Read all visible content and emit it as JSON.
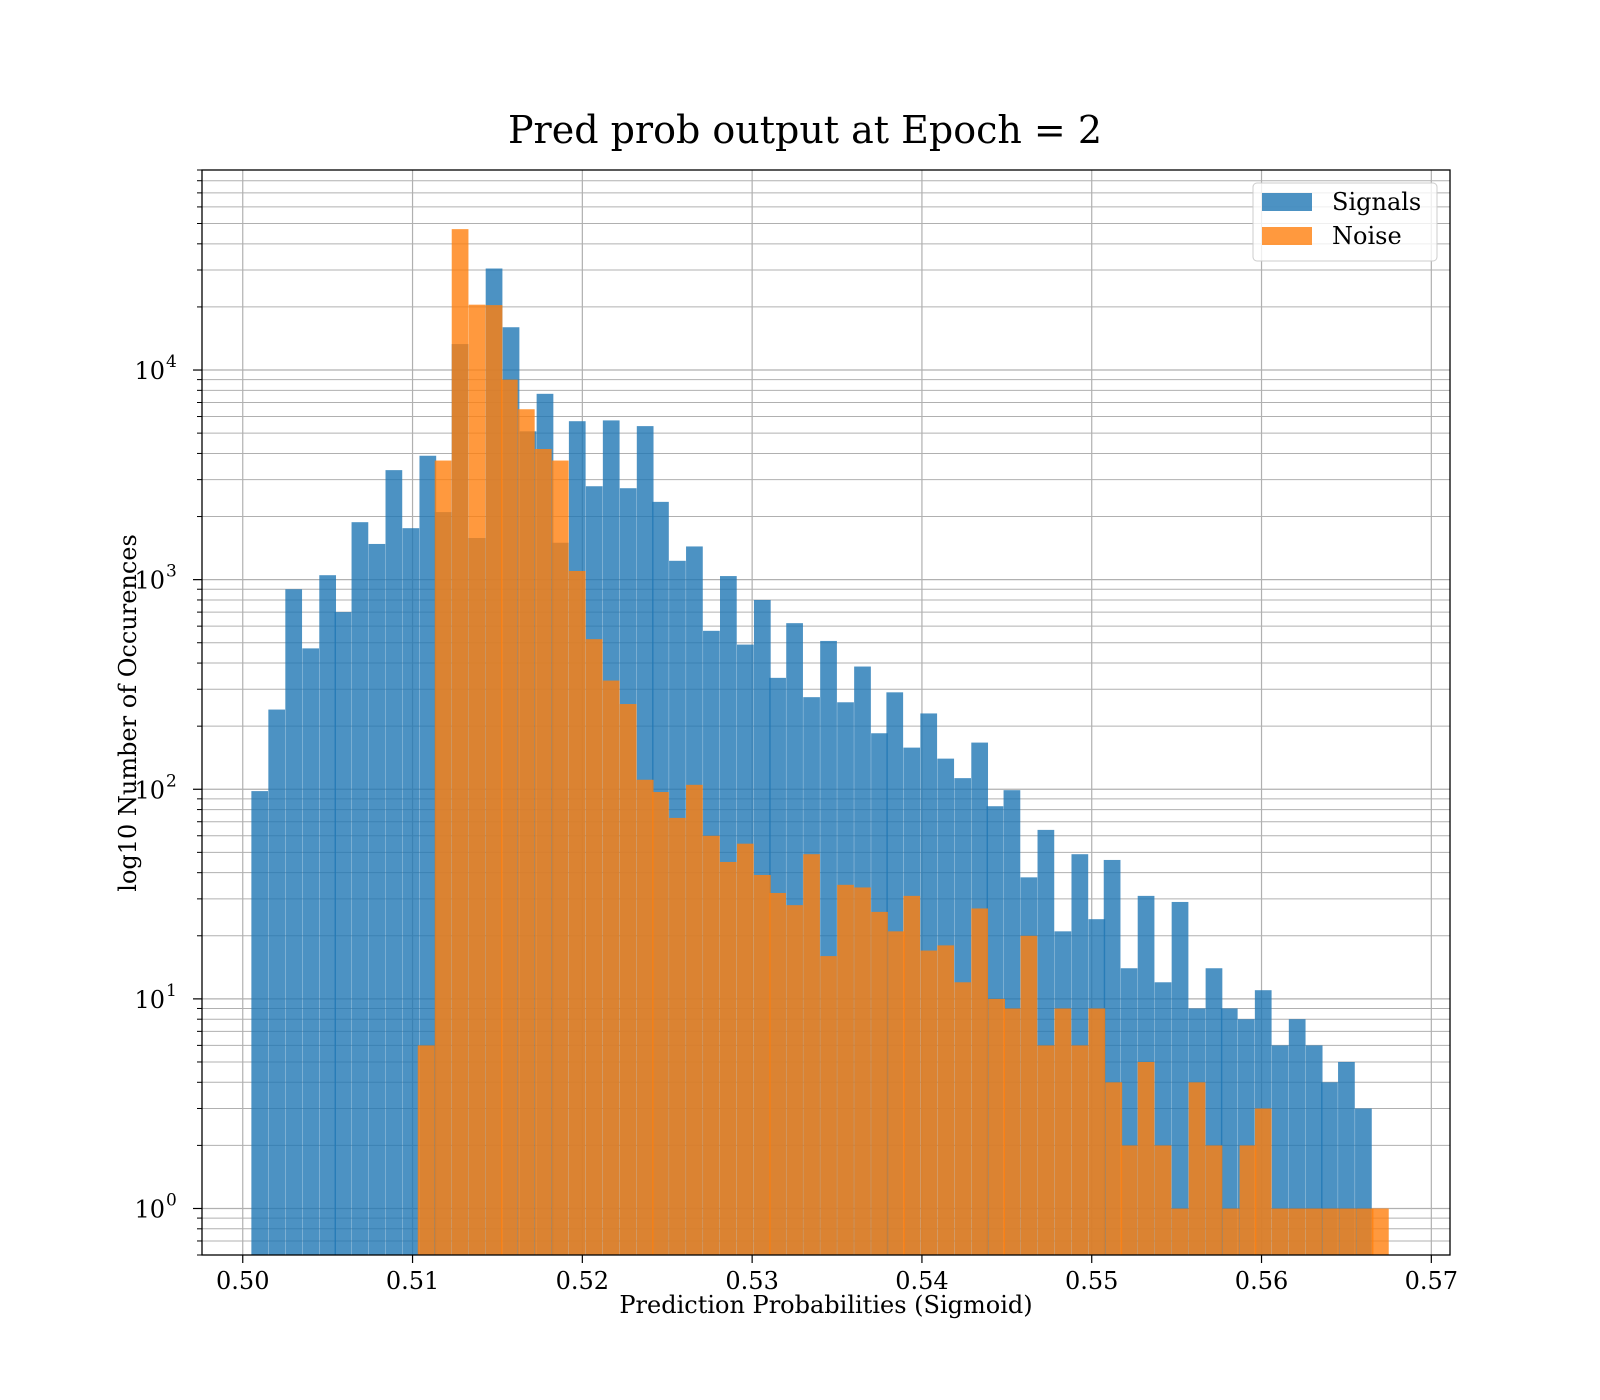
{
  "chart_data": {
    "type": "bar",
    "title": "Pred prob output at Epoch = 2",
    "xlabel": "Prediction Probabilities (Sigmoid)",
    "ylabel": "log10 Number of Occurences",
    "xlim": [
      0.4976,
      0.5711
    ],
    "ylim": [
      0.6,
      90000
    ],
    "yscale": "log",
    "grid": "both (major and minor)",
    "legend_position": "top-right",
    "x_ticks": [
      "0.50",
      "0.51",
      "0.52",
      "0.53",
      "0.54",
      "0.55",
      "0.56",
      "0.57"
    ],
    "y_ticks": [
      {
        "value": 1,
        "base": "10",
        "exp": "0"
      },
      {
        "value": 10,
        "base": "10",
        "exp": "1"
      },
      {
        "value": 100,
        "base": "10",
        "exp": "2"
      },
      {
        "value": 1000,
        "base": "10",
        "exp": "3"
      },
      {
        "value": 10000,
        "base": "10",
        "exp": "4"
      }
    ],
    "series": [
      {
        "name": "Signals",
        "color": "#1f77b4",
        "bin_width": 0.000985,
        "x": [
          0.501,
          0.502,
          0.503,
          0.504,
          0.505,
          0.5059,
          0.5069,
          0.5079,
          0.5089,
          0.5099,
          0.5109,
          0.5118,
          0.5128,
          0.5138,
          0.5148,
          0.5158,
          0.5168,
          0.5178,
          0.5187,
          0.5197,
          0.5207,
          0.5217,
          0.5227,
          0.5237,
          0.5246,
          0.5256,
          0.5266,
          0.5276,
          0.5286,
          0.5296,
          0.5306,
          0.5315,
          0.5325,
          0.5335,
          0.5345,
          0.5355,
          0.5365,
          0.5375,
          0.5384,
          0.5394,
          0.5404,
          0.5414,
          0.5424,
          0.5434,
          0.5443,
          0.5453,
          0.5463,
          0.5473,
          0.5483,
          0.5493,
          0.5503,
          0.5512,
          0.5522,
          0.5532,
          0.5542,
          0.5552,
          0.5562,
          0.5572,
          0.5581,
          0.5591,
          0.5601,
          0.5611,
          0.5621,
          0.5631,
          0.564,
          0.565,
          0.566
        ],
        "values": [
          98,
          240,
          900,
          470,
          1050,
          700,
          1880,
          1480,
          3330,
          1760,
          3900,
          2100,
          13300,
          1580,
          30500,
          16000,
          5100,
          7700,
          1500,
          5700,
          2790,
          5750,
          2730,
          5400,
          2350,
          1230,
          1440,
          570,
          1040,
          490,
          800,
          340,
          620,
          275,
          510,
          260,
          385,
          185,
          290,
          158,
          230,
          140,
          113,
          167,
          83,
          99,
          38,
          64,
          21,
          49,
          24,
          46,
          14,
          31,
          12,
          29,
          9,
          14,
          9,
          8,
          11,
          6,
          8,
          6,
          4,
          5,
          3
        ]
      },
      {
        "name": "Noise",
        "color": "#ff7f0e",
        "bin_width": 0.000985,
        "x": [
          0.5108,
          0.5118,
          0.5128,
          0.5138,
          0.5148,
          0.5157,
          0.5167,
          0.5177,
          0.5187,
          0.5197,
          0.5207,
          0.5217,
          0.5227,
          0.5237,
          0.5246,
          0.5256,
          0.5266,
          0.5276,
          0.5286,
          0.5296,
          0.5306,
          0.5315,
          0.5325,
          0.5335,
          0.5345,
          0.5355,
          0.5365,
          0.5375,
          0.5385,
          0.5394,
          0.5404,
          0.5414,
          0.5424,
          0.5434,
          0.5444,
          0.5453,
          0.5463,
          0.5473,
          0.5483,
          0.5493,
          0.5503,
          0.5513,
          0.5522,
          0.5532,
          0.5542,
          0.5552,
          0.5562,
          0.5572,
          0.5582,
          0.5592,
          0.5601,
          0.5611,
          0.5621,
          0.5631,
          0.5641,
          0.5651,
          0.5661,
          0.567
        ],
        "values": [
          6,
          3700,
          47000,
          20500,
          20400,
          9000,
          6500,
          4200,
          3700,
          1100,
          520,
          330,
          255,
          111,
          97,
          73,
          105,
          60,
          45,
          55,
          39,
          32,
          28,
          49,
          16,
          35,
          34,
          26,
          21,
          31,
          17,
          18,
          12,
          27,
          10,
          9,
          20,
          6,
          9,
          6,
          9,
          4,
          2,
          5,
          2,
          1,
          4,
          2,
          1,
          2,
          3,
          1,
          1,
          1,
          1,
          1,
          1,
          1
        ]
      }
    ]
  }
}
